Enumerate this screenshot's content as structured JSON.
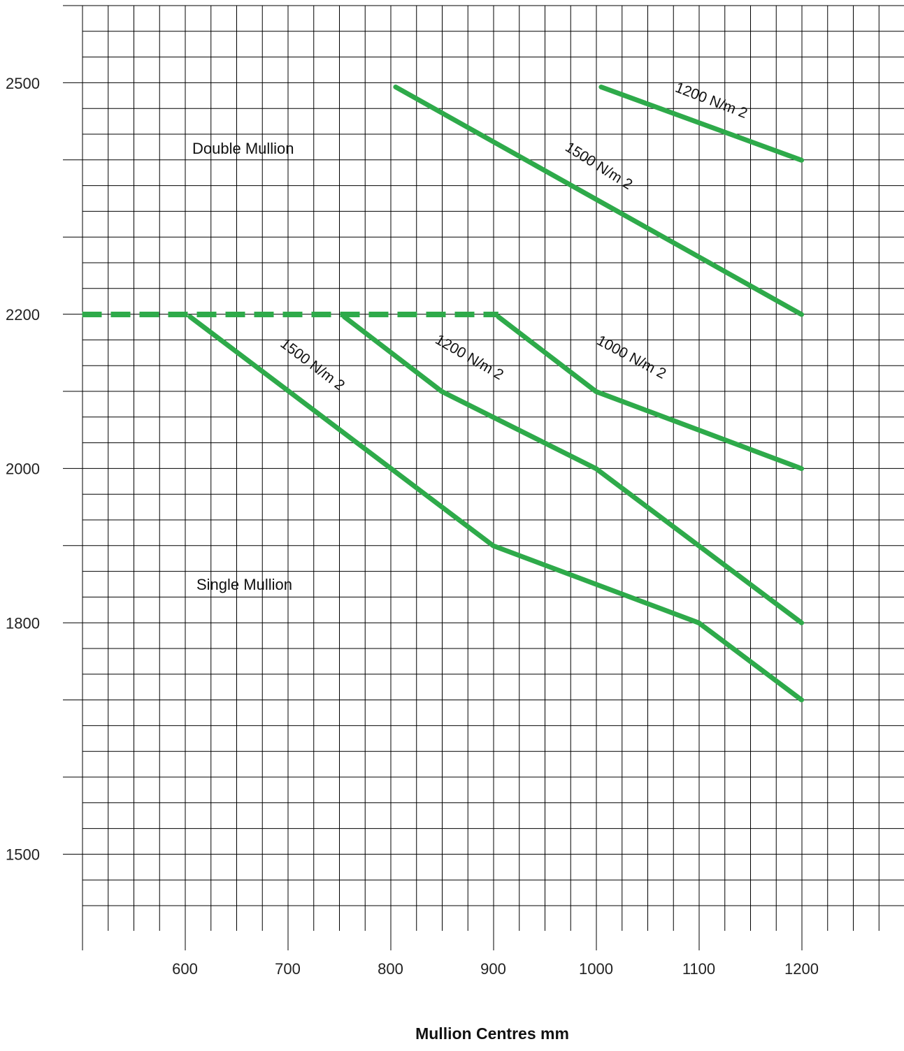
{
  "chart_data": {
    "type": "line",
    "title": "",
    "xlabel": "Mullion Centres mm",
    "ylabel": "",
    "xlim": [
      500,
      1300
    ],
    "ylim": [
      1420,
      2650
    ],
    "grid": true,
    "colors": {
      "series": "#2eaa4a",
      "grid": "#000000"
    },
    "x_ticks": [
      600,
      700,
      800,
      900,
      1000,
      1100,
      1200
    ],
    "y_ticks": [
      1500,
      1800,
      2000,
      2200,
      2500
    ],
    "series": [
      {
        "label": "1200 N/m 2",
        "group": "Double Mullion",
        "points": [
          [
            1005,
            2495
          ],
          [
            1200,
            2400
          ]
        ]
      },
      {
        "label": "1500 N/m 2",
        "group": "Double Mullion",
        "points": [
          [
            805,
            2495
          ],
          [
            1200,
            2200
          ]
        ]
      },
      {
        "label": "1500 N/m 2",
        "group": "Single Mullion",
        "points": [
          [
            605,
            2197
          ],
          [
            900,
            1900
          ],
          [
            1000,
            1850
          ],
          [
            1100,
            1800
          ],
          [
            1200,
            1700
          ]
        ]
      },
      {
        "label": "1200 N/m 2",
        "group": "Single Mullion",
        "points": [
          [
            755,
            2197
          ],
          [
            850,
            2100
          ],
          [
            1000,
            2000
          ],
          [
            1200,
            1800
          ]
        ]
      },
      {
        "label": "1000 N/m 2",
        "group": "Single Mullion",
        "points": [
          [
            905,
            2197
          ],
          [
            1000,
            2100
          ],
          [
            1200,
            2000
          ]
        ]
      }
    ],
    "reference_line": {
      "style": "dashed",
      "y": 2200,
      "x": [
        500,
        905
      ]
    },
    "annotations": {
      "double": "Double Mullion",
      "single": "Single Mullion"
    }
  }
}
